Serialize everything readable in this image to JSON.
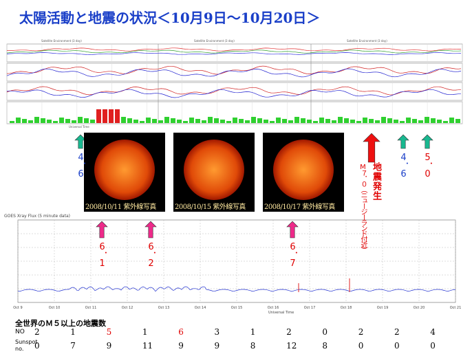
{
  "title": "太陽活動と地震の状況＜10月9日～10月20日＞",
  "top_chart": {
    "headers": [
      "Satellite Environment (3 day)",
      "Satellite Environment (3 day)",
      "Satellite Environment (3 day)"
    ],
    "footer": "Universal Time"
  },
  "green_markers": [
    "4．6",
    "4．6",
    "5．0"
  ],
  "photos": [
    "2008/10/11 紫外線写真",
    "2008/10/15 紫外線写真",
    "2008/10/17 紫外線写真"
  ],
  "earthquake": {
    "title": "地震発生",
    "detail": "M７．０（ニュージーランド付近）"
  },
  "xray_chart": {
    "header": "GOES Xray Flux (5 minute data)",
    "x_labels": [
      "Oct 9",
      "Oct 10",
      "Oct 11",
      "Oct 12",
      "Oct 13",
      "Oct 14",
      "Oct 15",
      "Oct 16",
      "Oct 17",
      "Oct 18",
      "Oct 19",
      "Oct 20",
      "Oct 21"
    ],
    "footer": "Universal Time"
  },
  "pink_markers": [
    "6．1",
    "6．2",
    "6．7"
  ],
  "table": {
    "caption": "全世界のＭ５以上の地震数",
    "quake_label": "NO",
    "quake_counts": [
      2,
      1,
      5,
      1,
      6,
      3,
      1,
      2,
      0,
      2,
      2,
      4
    ],
    "quake_colors": [
      "#000",
      "#000",
      "#e00000",
      "#000",
      "#e00000",
      "#000",
      "#000",
      "#000",
      "#000",
      "#000",
      "#000",
      "#000"
    ],
    "sunspot_label": [
      "Sunspot",
      "no."
    ],
    "sunspot_numbers": [
      0,
      7,
      9,
      11,
      9,
      9,
      8,
      12,
      8,
      0,
      0,
      0
    ]
  }
}
